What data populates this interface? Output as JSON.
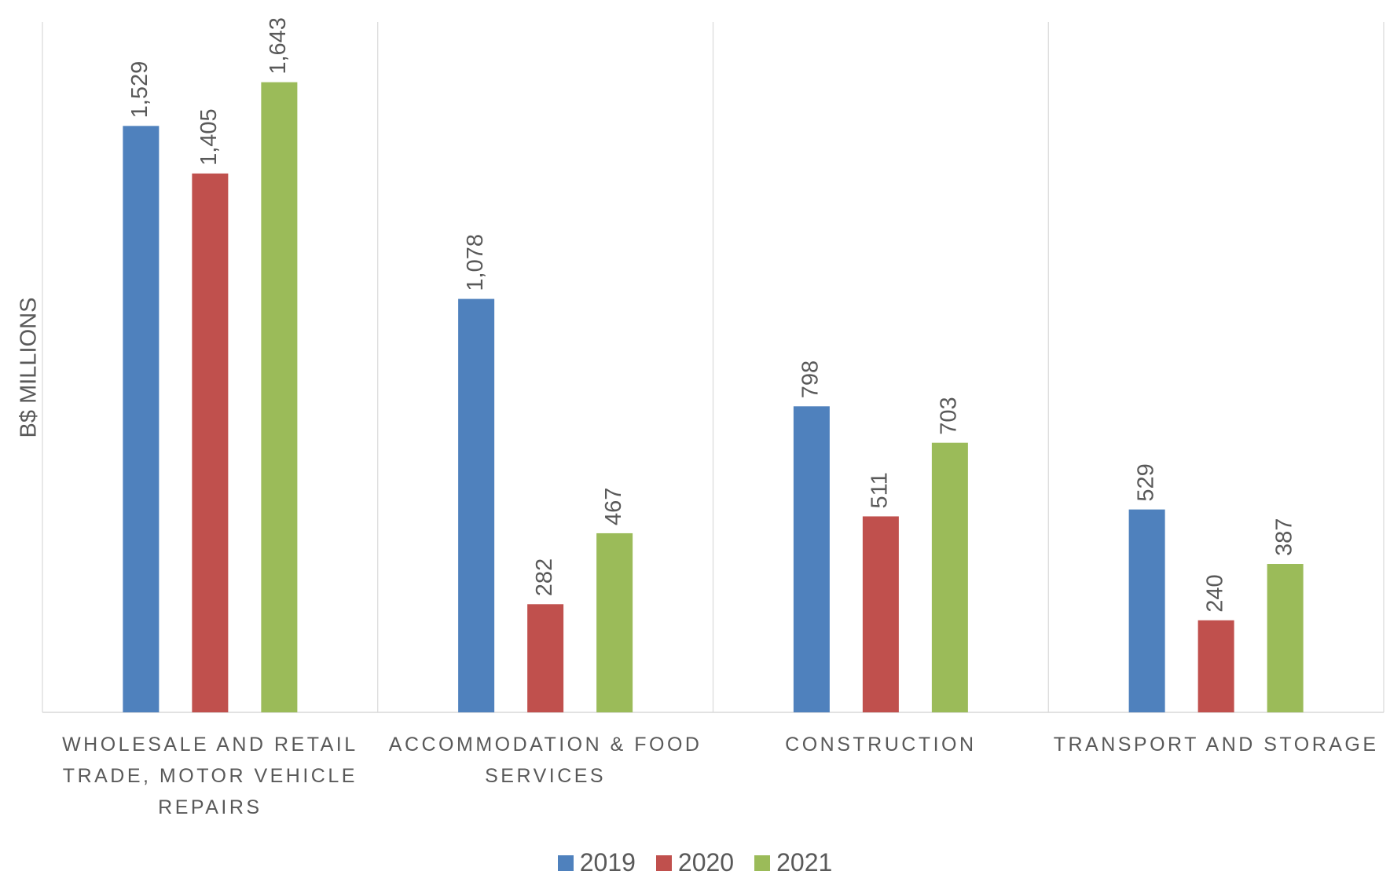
{
  "chart_data": {
    "type": "bar",
    "y_label": "B$ MILLIONS",
    "categories": [
      "WHOLESALE AND RETAIL TRADE, MOTOR VEHICLE REPAIRS",
      "ACCOMMODATION & FOOD SERVICES",
      "CONSTRUCTION",
      "TRANSPORT AND STORAGE"
    ],
    "series": [
      {
        "name": "2019",
        "color": "#4f81bd",
        "values": [
          1529,
          1078,
          798,
          529
        ],
        "value_labels": [
          "1,529",
          "1,078",
          "798",
          "529"
        ]
      },
      {
        "name": "2020",
        "color": "#c0504d",
        "values": [
          1405,
          282,
          511,
          240
        ],
        "value_labels": [
          "1,405",
          "282",
          "511",
          "240"
        ]
      },
      {
        "name": "2021",
        "color": "#9bbb59",
        "values": [
          1643,
          467,
          703,
          387
        ],
        "value_labels": [
          "1,643",
          "467",
          "703",
          "387"
        ]
      }
    ],
    "ylim": [
      0,
      1800
    ],
    "legend": "bottom"
  }
}
